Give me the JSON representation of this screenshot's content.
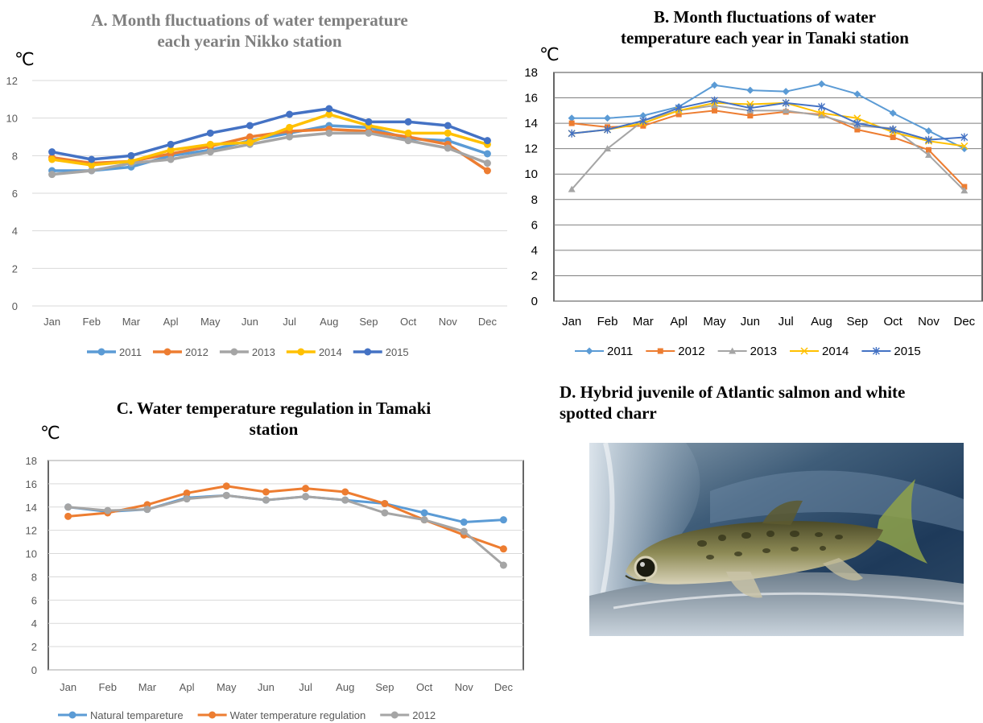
{
  "months": [
    "Jan",
    "Feb",
    "Mar",
    "Apl",
    "May",
    "Jun",
    "Jul",
    "Aug",
    "Sep",
    "Oct",
    "Nov",
    "Dec"
  ],
  "chart_data": [
    {
      "id": "A",
      "type": "line",
      "title_lines": [
        "A. Month fluctuations of water temperature",
        "each yearin Nikko station"
      ],
      "title": "A. Month fluctuations of water temperature each yearin Nikko station",
      "unit": "℃",
      "ylim": [
        0,
        12
      ],
      "yticks": [
        0,
        2,
        4,
        6,
        8,
        10,
        12
      ],
      "grid": true,
      "legend": "bottom",
      "categories": [
        "Jan",
        "Feb",
        "Mar",
        "Apl",
        "May",
        "Jun",
        "Jul",
        "Aug",
        "Sep",
        "Oct",
        "Nov",
        "Dec"
      ],
      "series": [
        {
          "name": "2011",
          "color": "#5b9bd5",
          "marker": "circle",
          "values": [
            7.2,
            7.2,
            7.4,
            8.0,
            8.3,
            8.8,
            9.2,
            9.6,
            9.5,
            8.9,
            8.8,
            8.1
          ]
        },
        {
          "name": "2012",
          "color": "#ed7d31",
          "marker": "circle",
          "values": [
            7.9,
            7.6,
            7.7,
            8.1,
            8.5,
            9.0,
            9.3,
            9.4,
            9.3,
            9.0,
            8.6,
            7.2
          ]
        },
        {
          "name": "2013",
          "color": "#a5a5a5",
          "marker": "circle",
          "values": [
            7.0,
            7.2,
            7.6,
            7.8,
            8.2,
            8.6,
            9.0,
            9.2,
            9.2,
            8.8,
            8.4,
            7.6
          ]
        },
        {
          "name": "2014",
          "color": "#ffc000",
          "marker": "circle",
          "values": [
            7.8,
            7.5,
            7.7,
            8.3,
            8.6,
            8.7,
            9.5,
            10.2,
            9.6,
            9.2,
            9.2,
            8.6
          ]
        },
        {
          "name": "2015",
          "color": "#4472c4",
          "marker": "circle",
          "values": [
            8.2,
            7.8,
            8.0,
            8.6,
            9.2,
            9.6,
            10.2,
            10.5,
            9.8,
            9.8,
            9.6,
            8.8
          ]
        }
      ]
    },
    {
      "id": "B",
      "type": "line",
      "title_lines": [
        "B. Month fluctuations of water",
        "temperature each year   in Tanaki station"
      ],
      "title": "B. Month fluctuations of water temperature each year   in Tanaki station",
      "unit": "℃",
      "ylim": [
        0,
        18
      ],
      "yticks": [
        0,
        2,
        4,
        6,
        8,
        10,
        12,
        14,
        16,
        18
      ],
      "grid": true,
      "legend": "bottom",
      "categories": [
        "Jan",
        "Feb",
        "Mar",
        "Apl",
        "May",
        "Jun",
        "Jul",
        "Aug",
        "Sep",
        "Oct",
        "Nov",
        "Dec"
      ],
      "series": [
        {
          "name": "2011",
          "color": "#5b9bd5",
          "marker": "diamond",
          "values": [
            14.4,
            14.4,
            14.6,
            15.3,
            17.0,
            16.6,
            16.5,
            17.1,
            16.3,
            14.8,
            13.4,
            12.0
          ]
        },
        {
          "name": "2012",
          "color": "#ed7d31",
          "marker": "square",
          "values": [
            14.0,
            13.7,
            13.8,
            14.7,
            15.0,
            14.6,
            14.9,
            14.7,
            13.5,
            12.9,
            11.9,
            9.0
          ]
        },
        {
          "name": "2013",
          "color": "#a5a5a5",
          "marker": "triangle",
          "values": [
            8.8,
            12.0,
            14.2,
            15.0,
            15.4,
            15.0,
            15.0,
            14.6,
            13.8,
            13.6,
            11.5,
            8.7
          ]
        },
        {
          "name": "2014",
          "color": "#ffc000",
          "marker": "x",
          "values": [
            13.2,
            13.5,
            14.0,
            15.0,
            15.6,
            15.5,
            15.6,
            14.8,
            14.4,
            13.3,
            12.6,
            12.2
          ]
        },
        {
          "name": "2015",
          "color": "#4472c4",
          "marker": "star",
          "values": [
            13.2,
            13.5,
            14.2,
            15.2,
            15.8,
            15.2,
            15.6,
            15.3,
            14.0,
            13.5,
            12.7,
            12.9
          ]
        }
      ]
    },
    {
      "id": "C",
      "type": "line",
      "title_lines": [
        "C. Water temperature regulation in Tamaki",
        "station"
      ],
      "title": "C. Water temperature regulation in Tamaki station",
      "unit": "℃",
      "ylim": [
        0,
        18
      ],
      "yticks": [
        0,
        2,
        4,
        6,
        8,
        10,
        12,
        14,
        16,
        18
      ],
      "grid": true,
      "legend": "bottom",
      "categories": [
        "Jan",
        "Feb",
        "Mar",
        "Apl",
        "May",
        "Jun",
        "Jul",
        "Aug",
        "Sep",
        "Oct",
        "Nov",
        "Dec"
      ],
      "series": [
        {
          "name": "Natural tempareture",
          "color": "#5b9bd5",
          "marker": "circle",
          "values": [
            14.0,
            13.6,
            13.8,
            14.8,
            15.0,
            14.6,
            14.9,
            14.6,
            14.3,
            13.5,
            12.7,
            12.9
          ]
        },
        {
          "name": "Water temperature regulation",
          "color": "#ed7d31",
          "marker": "circle",
          "values": [
            13.2,
            13.5,
            14.2,
            15.2,
            15.8,
            15.3,
            15.6,
            15.3,
            14.3,
            12.9,
            11.6,
            10.4
          ]
        },
        {
          "name": "2012",
          "color": "#a5a5a5",
          "marker": "circle",
          "values": [
            14.0,
            13.7,
            13.8,
            14.7,
            15.0,
            14.6,
            14.9,
            14.6,
            13.5,
            12.9,
            11.9,
            9.0
          ]
        }
      ]
    }
  ],
  "photo": {
    "title_lines": [
      "D.  Hybrid juvenile of Atlantic salmon and white",
      "spotted charr"
    ]
  }
}
